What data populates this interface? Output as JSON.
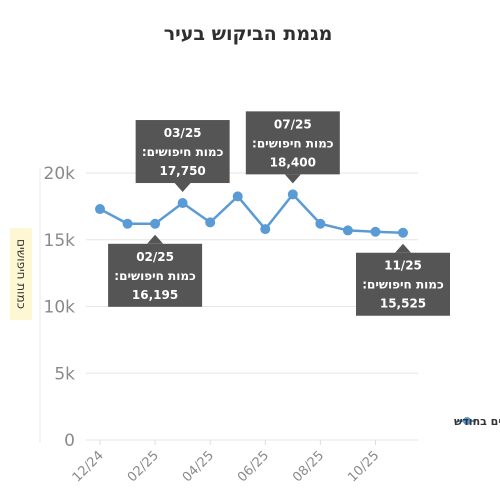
{
  "chart_data": {
    "type": "line",
    "title": "מגמת הביקוש בעיר",
    "ylabel": "כמות חיפושים",
    "xlabel": "",
    "ylim": [
      0,
      20000
    ],
    "yticks": [
      {
        "value": 0,
        "label": "0"
      },
      {
        "value": 5000,
        "label": "5k"
      },
      {
        "value": 10000,
        "label": "10k"
      },
      {
        "value": 15000,
        "label": "15k"
      },
      {
        "value": 20000,
        "label": "20k"
      }
    ],
    "grid": "horizontal",
    "legend_position": "right",
    "x": [
      "12/24",
      "01/25",
      "02/25",
      "03/25",
      "04/25",
      "05/25",
      "06/25",
      "07/25",
      "08/25",
      "09/25",
      "10/25",
      "11/25"
    ],
    "x_tick_labels": [
      "12/24",
      "02/25",
      "04/25",
      "06/25",
      "08/25",
      "10/25"
    ],
    "series": [
      {
        "name": "חיפושים בחודש",
        "color": "#5b9bd5",
        "values": [
          17300,
          16200,
          16195,
          17750,
          16300,
          18250,
          15800,
          18400,
          16200,
          15700,
          15600,
          15525
        ]
      }
    ],
    "annotations": [
      {
        "x": "03/25",
        "title": "03/25",
        "label": "כמות חיפושים:",
        "value": "17,750",
        "position": "above"
      },
      {
        "x": "07/25",
        "title": "07/25",
        "label": "כמות חיפושים:",
        "value": "18,400",
        "position": "above"
      },
      {
        "x": "02/25",
        "title": "02/25",
        "label": "כמות חיפושים:",
        "value": "16,195",
        "position": "below"
      },
      {
        "x": "11/25",
        "title": "11/25",
        "label": "כמות חיפושים:",
        "value": "15,525",
        "position": "below"
      }
    ]
  }
}
